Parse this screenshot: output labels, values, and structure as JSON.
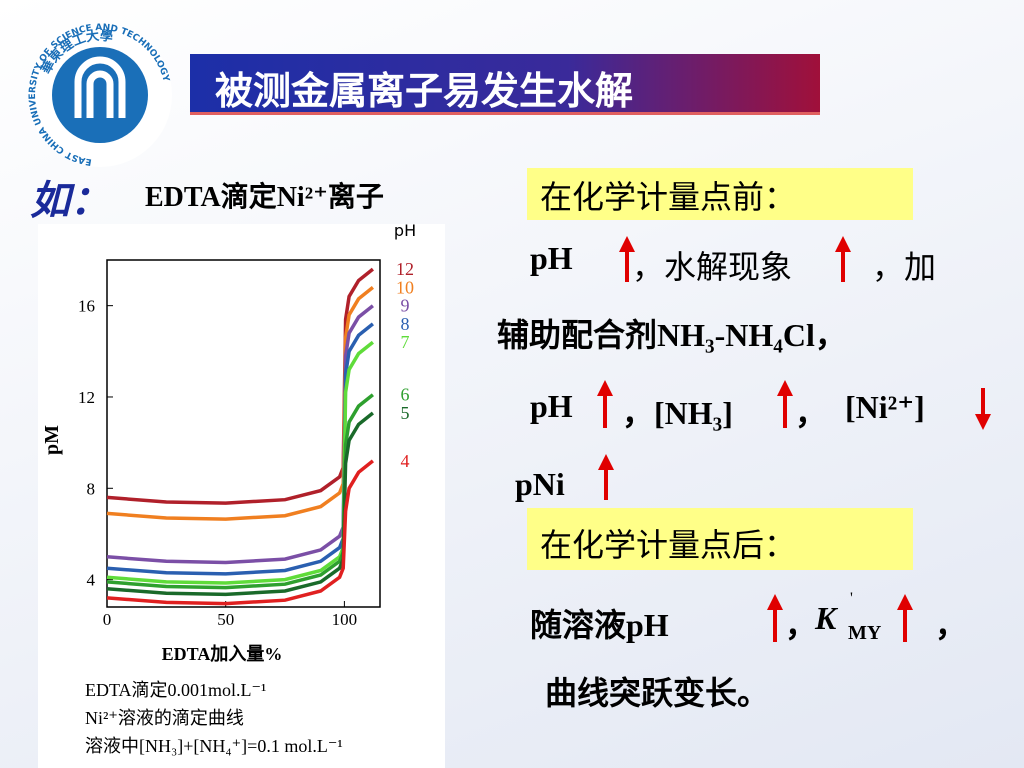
{
  "header": {
    "title": "被测金属离子易发生水解"
  },
  "logo": {
    "name_cn": "華東理工大學",
    "name_en": "EAST CHINA UNIVERSITY OF SCIENCE AND TECHNOLOGY"
  },
  "intro": {
    "prefix": "如：",
    "text": "EDTA滴定Ni²⁺离子"
  },
  "before": {
    "heading": "在化学计量点前：",
    "line1": [
      "pH",
      "，水解现象",
      "，加"
    ],
    "line2": "辅助配合剂NH₃-NH₄Cl，",
    "line3": [
      "pH",
      "，[NH₃]",
      "，",
      "[Ni²⁺]"
    ],
    "line4": "pNi"
  },
  "after": {
    "heading": "在化学计量点后：",
    "line1": [
      "随溶液pH",
      "，",
      "K",
      "'",
      "MY",
      "，"
    ],
    "line2": "曲线突跃变长。"
  },
  "chart_data": {
    "type": "line",
    "x_label": "EDTA加入量%",
    "y_label": "pM",
    "legend_title": "pH",
    "x": [
      0,
      25,
      50,
      75,
      90,
      98,
      99.5,
      100.5,
      102,
      106,
      112
    ],
    "series": [
      {
        "name": "12",
        "color": "#b0202a",
        "values": [
          7.6,
          7.4,
          7.35,
          7.5,
          7.9,
          8.5,
          8.9,
          15.4,
          16.4,
          17.1,
          17.6
        ]
      },
      {
        "name": "10",
        "color": "#f07f20",
        "values": [
          6.9,
          6.7,
          6.65,
          6.8,
          7.2,
          7.8,
          8.2,
          14.6,
          15.6,
          16.3,
          16.8
        ]
      },
      {
        "name": "9",
        "color": "#7b4fa6",
        "values": [
          5.0,
          4.8,
          4.75,
          4.9,
          5.3,
          5.9,
          6.3,
          13.8,
          14.8,
          15.5,
          16.0
        ]
      },
      {
        "name": "8",
        "color": "#2a5fb0",
        "values": [
          4.5,
          4.3,
          4.25,
          4.4,
          4.8,
          5.4,
          5.8,
          13.0,
          14.0,
          14.7,
          15.2
        ]
      },
      {
        "name": "7",
        "color": "#5fdc3a",
        "values": [
          4.1,
          3.9,
          3.85,
          4.0,
          4.4,
          5.0,
          5.4,
          12.2,
          13.2,
          13.9,
          14.4
        ]
      },
      {
        "name": "6",
        "color": "#2ea02e",
        "values": [
          3.9,
          3.7,
          3.65,
          3.8,
          4.2,
          4.8,
          5.2,
          9.9,
          10.9,
          11.6,
          12.1
        ]
      },
      {
        "name": "5",
        "color": "#1a6a2a",
        "values": [
          3.6,
          3.4,
          3.35,
          3.5,
          3.9,
          4.5,
          4.9,
          9.1,
          10.1,
          10.8,
          11.3
        ]
      },
      {
        "name": "4",
        "color": "#e02020",
        "values": [
          3.2,
          3.0,
          2.95,
          3.1,
          3.5,
          4.1,
          4.5,
          7.0,
          8.0,
          8.7,
          9.2
        ]
      }
    ],
    "xlim": [
      0,
      115
    ],
    "ylim": [
      2.8,
      18
    ],
    "xticks": [
      0,
      50,
      100
    ],
    "yticks": [
      4,
      8,
      12,
      16
    ],
    "caption": [
      "EDTA滴定0.001mol.L⁻¹",
      "Ni²⁺溶液的滴定曲线",
      "溶液中[NH₃]+[NH₄⁺]=0.1 mol.L⁻¹"
    ]
  }
}
